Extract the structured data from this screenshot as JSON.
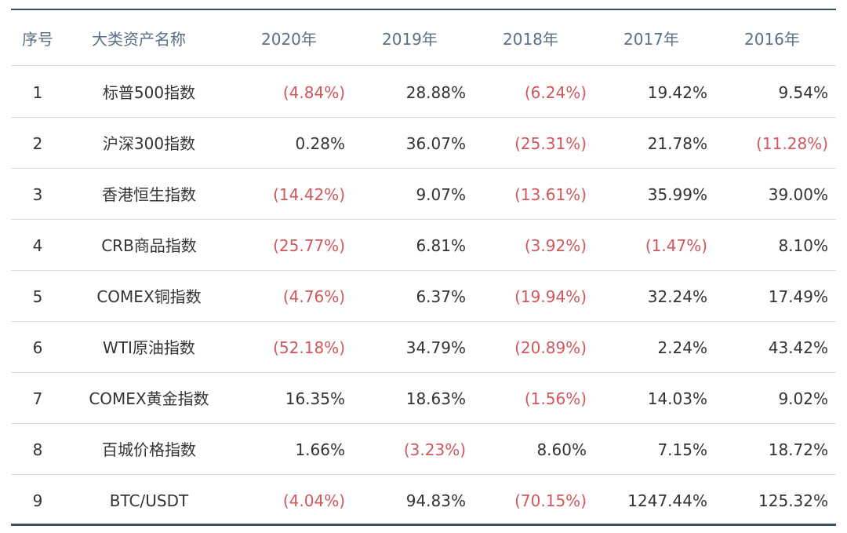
{
  "table": {
    "header": [
      "序号",
      "大类资产名称",
      "2020年",
      "2019年",
      "2018年",
      "2017年",
      "2016年"
    ],
    "rows": [
      [
        "1",
        "标普500指数",
        "(4.84%)",
        "28.88%",
        "(6.24%)",
        "19.42%",
        "9.54%"
      ],
      [
        "2",
        "沪深300指数",
        "0.28%",
        "36.07%",
        "(25.31%)",
        "21.78%",
        "(11.28%)"
      ],
      [
        "3",
        "香港恒生指数",
        "(14.42%)",
        "9.07%",
        "(13.61%)",
        "35.99%",
        "39.00%"
      ],
      [
        "4",
        "CRB商品指数",
        "(25.77%)",
        "6.81%",
        "(3.92%)",
        "(1.47%)",
        "8.10%"
      ],
      [
        "5",
        "COMEX铜指数",
        "(4.76%)",
        "6.37%",
        "(19.94%)",
        "32.24%",
        "17.49%"
      ],
      [
        "6",
        "WTI原油指数",
        "(52.18%)",
        "34.79%",
        "(20.89%)",
        "2.24%",
        "43.42%"
      ],
      [
        "7",
        "COMEX黄金指数",
        "16.35%",
        "18.63%",
        "(1.56%)",
        "14.03%",
        "9.02%"
      ],
      [
        "8",
        "百城价格指数",
        "1.66%",
        "(3.23%)",
        "8.60%",
        "7.15%",
        "18.72%"
      ],
      [
        "9",
        "BTC/USDT",
        "(4.04%)",
        "94.83%",
        "(70.15%)",
        "1247.44%",
        "125.32%"
      ]
    ],
    "header_color": "#5b6f87",
    "text_color": "#333333",
    "negative_color": "#d0575b"
  }
}
